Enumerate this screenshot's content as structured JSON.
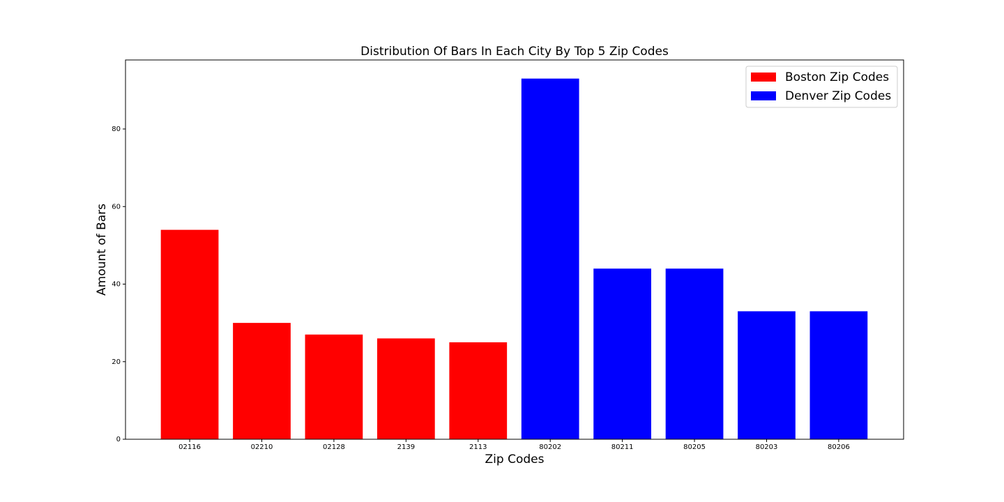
{
  "chart_data": {
    "type": "bar",
    "title": "Distribution Of Bars In Each City By Top 5 Zip Codes",
    "x_label": "Zip Codes",
    "y_label": "Amount of Bars",
    "categories": [
      "02116",
      "02210",
      "02128",
      "2139",
      "2113",
      "80202",
      "80211",
      "80205",
      "80203",
      "80206"
    ],
    "series": [
      {
        "name": "Boston Zip Codes",
        "color": "#ff0000",
        "values": [
          54,
          30,
          27,
          26,
          25,
          null,
          null,
          null,
          null,
          null
        ]
      },
      {
        "name": "Denver Zip Codes",
        "color": "#0000ff",
        "values": [
          null,
          null,
          null,
          null,
          null,
          93,
          44,
          44,
          33,
          33
        ]
      }
    ],
    "ylim": [
      0,
      97.8
    ],
    "yticks": [
      0,
      20,
      40,
      60,
      80
    ],
    "legend": "upper right"
  }
}
